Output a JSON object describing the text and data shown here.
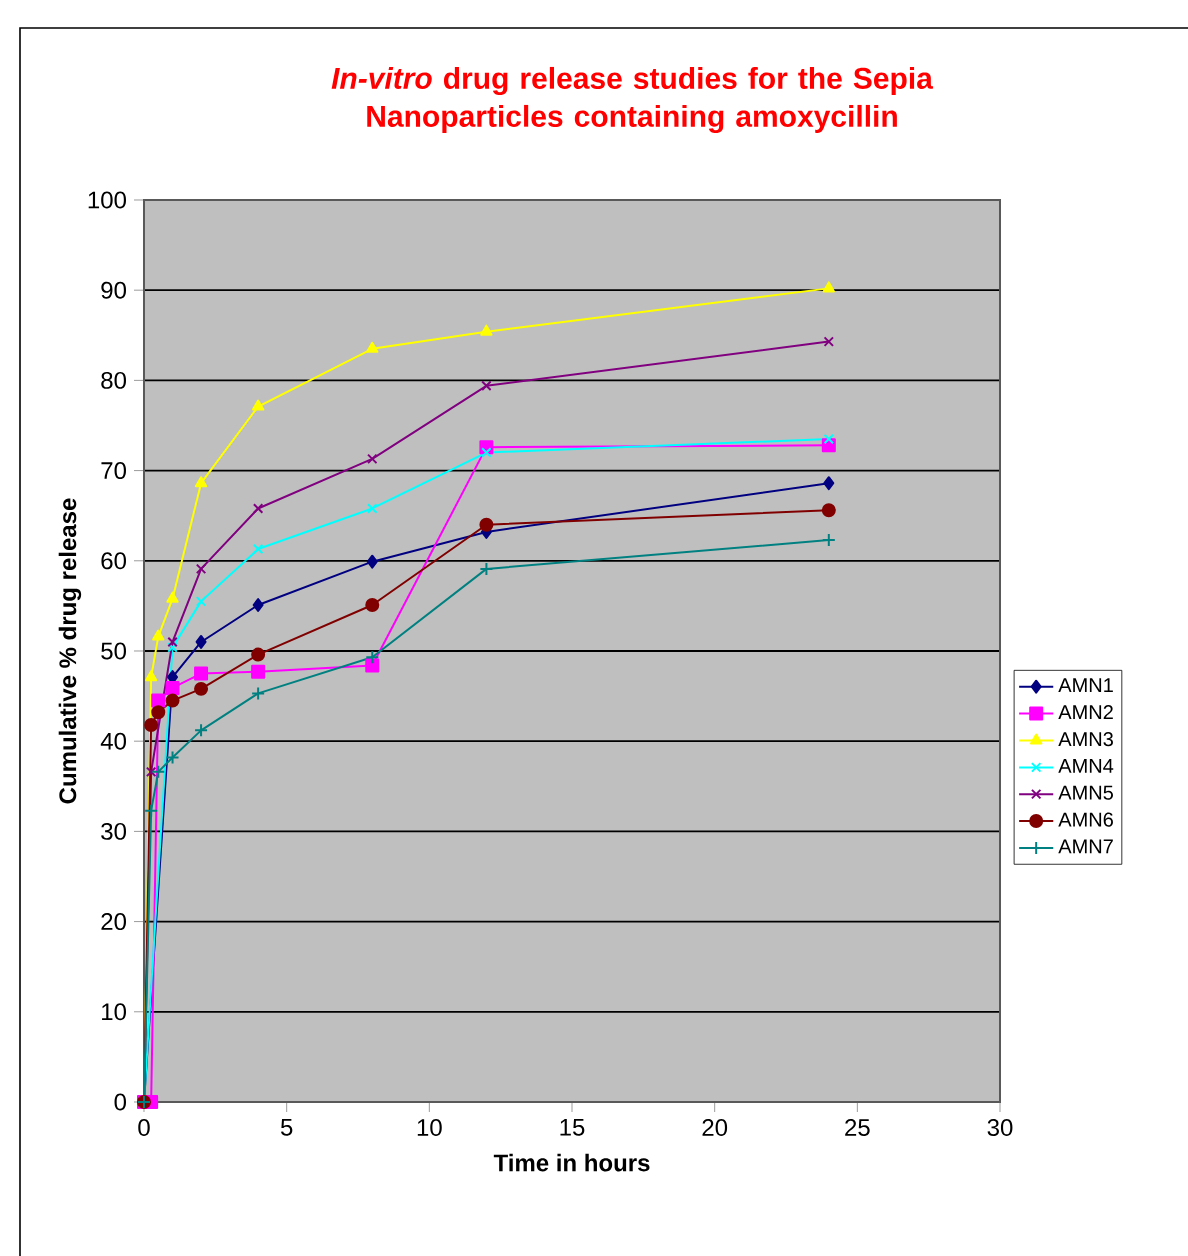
{
  "chart_data": {
    "type": "line",
    "title": "*In-vitro* drug release studies for the Sepia Nanoparticles containing amoxycillin",
    "xlabel": "Time in hours",
    "ylabel": "Cumulative % drug release",
    "xlim": [
      0,
      30
    ],
    "ylim": [
      0,
      100
    ],
    "xticks": [
      0,
      5,
      10,
      15,
      20,
      25,
      30
    ],
    "yticks": [
      0,
      10,
      20,
      30,
      40,
      50,
      60,
      70,
      80,
      90,
      100
    ],
    "grid": "y",
    "legend": "right",
    "line_style": "solid",
    "series": [
      {
        "name": "AMN1",
        "color": "#000080",
        "marker": "diamond",
        "x": [
          0,
          0.25,
          0.5,
          1,
          2,
          4,
          8,
          12,
          24
        ],
        "values": [
          0,
          null,
          null,
          47.1,
          51.0,
          55.1,
          59.9,
          63.2,
          68.6
        ]
      },
      {
        "name": "AMN2",
        "color": "#ff00ff",
        "marker": "square",
        "x": [
          0,
          0.25,
          0.5,
          1,
          2,
          4,
          8,
          12,
          24
        ],
        "values": [
          0,
          0,
          44.5,
          45.9,
          47.5,
          47.7,
          48.4,
          72.6,
          72.8
        ]
      },
      {
        "name": "AMN3",
        "color": "#ffff00",
        "marker": "triangle",
        "x": [
          0,
          0.25,
          0.5,
          1,
          2,
          4,
          8,
          12,
          24
        ],
        "values": [
          0,
          47.1,
          51.6,
          55.8,
          68.6,
          77.1,
          83.5,
          85.4,
          90.2
        ]
      },
      {
        "name": "AMN4",
        "color": "#00ffff",
        "marker": "cross",
        "x": [
          0,
          0.25,
          0.5,
          1,
          2,
          4,
          8,
          12,
          24
        ],
        "values": [
          0,
          null,
          null,
          50.4,
          55.5,
          61.3,
          65.8,
          72.0,
          73.5
        ]
      },
      {
        "name": "AMN5",
        "color": "#800080",
        "marker": "cross",
        "x": [
          0,
          0.25,
          1,
          2,
          4,
          8,
          12,
          24
        ],
        "values": [
          0,
          36.6,
          51.0,
          59.1,
          65.8,
          71.3,
          79.4,
          84.3
        ]
      },
      {
        "name": "AMN6",
        "color": "#800000",
        "marker": "circle",
        "x": [
          0,
          0.25,
          0.5,
          1,
          2,
          4,
          8,
          12,
          24
        ],
        "values": [
          0,
          41.8,
          43.2,
          44.5,
          45.8,
          49.6,
          55.1,
          64.0,
          65.6
        ]
      },
      {
        "name": "AMN7",
        "color": "#008080",
        "marker": "plus",
        "x": [
          0,
          0.25,
          0.5,
          1,
          2,
          4,
          8,
          12,
          24
        ],
        "values": [
          0,
          32.3,
          36.6,
          38.2,
          41.2,
          45.3,
          49.3,
          59.1,
          62.3
        ]
      }
    ]
  }
}
